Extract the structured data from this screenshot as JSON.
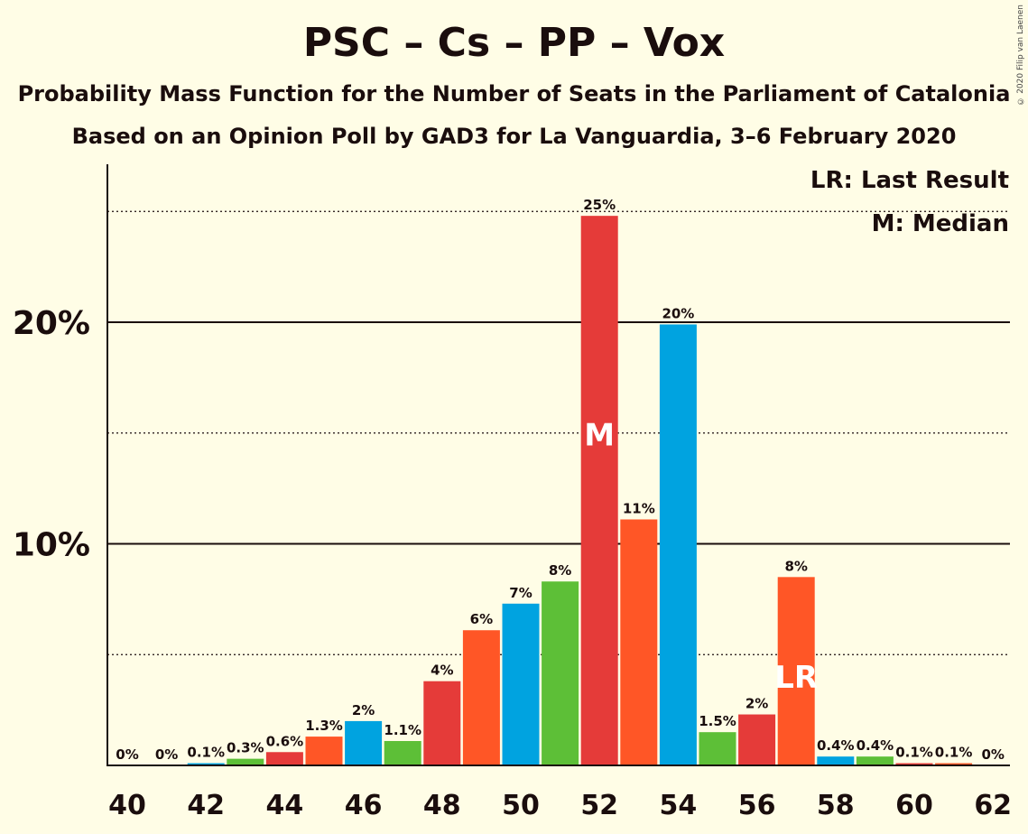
{
  "title": "PSC – Cs – PP – Vox",
  "subtitle1": "Probability Mass Function for the Number of Seats in the Parliament of Catalonia",
  "subtitle2": "Based on an Opinion Poll by GAD3 for La Vanguardia, 3–6 February 2020",
  "copyright": "© 2020 Filip van Laenen",
  "legend": {
    "last_result": "LR: Last Result",
    "median": "M: Median"
  },
  "colors": {
    "background": "#fffde6",
    "red": "#e53b39",
    "orange": "#ff5626",
    "blue": "#00a3e0",
    "green": "#5dbf37",
    "text": "#1a0d0d"
  },
  "chart_data": {
    "type": "bar",
    "x": [
      40,
      41,
      42,
      43,
      44,
      45,
      46,
      47,
      48,
      49,
      50,
      51,
      52,
      53,
      54,
      55,
      56,
      57,
      58,
      59,
      60,
      61,
      62
    ],
    "values": [
      0,
      0,
      0.1,
      0.3,
      0.6,
      1.3,
      2,
      1.1,
      3.8,
      6.1,
      7.3,
      8.3,
      24.8,
      11.1,
      19.9,
      1.5,
      2.3,
      8.5,
      0.4,
      0.4,
      0.1,
      0.1,
      0
    ],
    "labels": [
      "0%",
      "0%",
      "0.1%",
      "0.3%",
      "0.6%",
      "1.3%",
      "2%",
      "1.1%",
      "4%",
      "6%",
      "7%",
      "8%",
      "25%",
      "11%",
      "20%",
      "1.5%",
      "2%",
      "8%",
      "0.4%",
      "0.4%",
      "0.1%",
      "0.1%",
      "0%"
    ],
    "bar_colors": [
      "red",
      "orange",
      "blue",
      "green",
      "red",
      "orange",
      "blue",
      "green",
      "red",
      "orange",
      "blue",
      "green",
      "red",
      "orange",
      "blue",
      "green",
      "red",
      "orange",
      "blue",
      "green",
      "red",
      "orange",
      "blue"
    ],
    "x_ticks": [
      40,
      42,
      44,
      46,
      48,
      50,
      52,
      54,
      56,
      58,
      60,
      62
    ],
    "y_ticks": [
      {
        "value": 10,
        "label": "10%"
      },
      {
        "value": 20,
        "label": "20%"
      }
    ],
    "dotted_gridlines": [
      5,
      15,
      25
    ],
    "ylim": [
      0,
      27
    ],
    "median": {
      "x": 52,
      "label": "M"
    },
    "last_result": {
      "x": 57,
      "label": "LR"
    }
  }
}
